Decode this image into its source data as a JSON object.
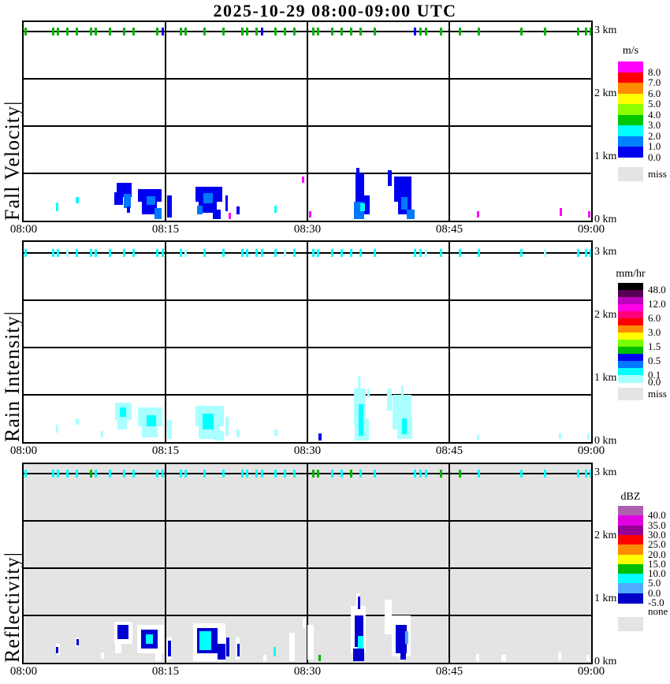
{
  "title": "2025-10-29  08:00-09:00 UTC",
  "time_axis": {
    "tick_labels": [
      "08:00",
      "08:15",
      "08:30",
      "08:45",
      "09:00"
    ],
    "tick_minutes": [
      0,
      15,
      30,
      45,
      60
    ]
  },
  "height_axis": {
    "tick_labels": [
      "3 km",
      "2 km",
      "1 km",
      "0 km"
    ],
    "tick_km": [
      3,
      2,
      1,
      0
    ]
  },
  "palette": {
    "b": "#0000F0",
    "d": "#0078FF",
    "c": "#00FFFF",
    "p": "#AAFFFF",
    "m": "#FF00FF",
    "w": "#FFFFFF",
    "n": "#0000D2",
    "g": "#00B400",
    "lb": "#50AAFF",
    "miss": "#E4E4E4",
    "grid": "#000000"
  },
  "top_tick_minutes": [
    0.2,
    3.1,
    3.6,
    4.6,
    5.6,
    7.1,
    7.6,
    9.1,
    10.6,
    11.6,
    14.1,
    14.7,
    16.6,
    17.1,
    19.1,
    21.1,
    23.1,
    23.6,
    24.6,
    25.2,
    26.6,
    27.6,
    28.6,
    30.6,
    31.1,
    32.6,
    33.6,
    34.6,
    35.6,
    37.1,
    41.3,
    41.9,
    42.5,
    44.1,
    46.1,
    48.1,
    52.6,
    55.1,
    58.6,
    59.4,
    59.9
  ],
  "panels": [
    {
      "id": "fall-velocity",
      "ylabel": "Fall Velocity|",
      "background": "#FFFFFF",
      "tick_default": "g",
      "tick_overrides": {
        "11": "b",
        "19": "b",
        "30": "b"
      },
      "colorbar": {
        "title": "m/s",
        "colors": [
          "#FF00FF",
          "#FF0000",
          "#FF8C00",
          "#FFFF00",
          "#8CFF00",
          "#00C800",
          "#00FFFF",
          "#0082FF",
          "#0000F0"
        ],
        "labels": [
          "8.0",
          "7.0",
          "6.0",
          "5.0",
          "4.0",
          "3.0",
          "2.0",
          "1.0",
          "0.0"
        ],
        "label_boundary_index": [
          1,
          2,
          3,
          4,
          5,
          6,
          7,
          8,
          9
        ],
        "missing_label": "miss",
        "missing_color": "#E4E4E4"
      },
      "cells": [
        [
          3.4,
          0.15,
          0.3,
          0.14,
          "c"
        ],
        [
          5.5,
          0.27,
          0.3,
          0.11,
          "c"
        ],
        [
          9.8,
          0.38,
          1.6,
          0.22,
          "b"
        ],
        [
          9.6,
          0.25,
          0.9,
          0.2,
          "b"
        ],
        [
          10.6,
          0.2,
          0.7,
          0.22,
          "d"
        ],
        [
          10.9,
          0.13,
          0.35,
          0.1,
          "b"
        ],
        [
          12.1,
          0.3,
          2.5,
          0.2,
          "b"
        ],
        [
          12.5,
          0.1,
          1.6,
          0.28,
          "b"
        ],
        [
          13.0,
          0.25,
          0.9,
          0.14,
          "d"
        ],
        [
          13.8,
          0.02,
          0.8,
          0.18,
          "d"
        ],
        [
          15.2,
          0.05,
          0.5,
          0.35,
          "b"
        ],
        [
          18.2,
          0.3,
          2.8,
          0.24,
          "b"
        ],
        [
          18.5,
          0.12,
          1.9,
          0.26,
          "b"
        ],
        [
          19.0,
          0.28,
          1.0,
          0.16,
          "d"
        ],
        [
          18.3,
          0.1,
          0.6,
          0.14,
          "d"
        ],
        [
          20.0,
          0.02,
          0.8,
          0.16,
          "b"
        ],
        [
          21.3,
          0.15,
          0.3,
          0.25,
          "b"
        ],
        [
          21.7,
          0.02,
          0.25,
          0.1,
          "m"
        ],
        [
          22.5,
          0.1,
          0.3,
          0.12,
          "b"
        ],
        [
          26.5,
          0.12,
          0.25,
          0.12,
          "c"
        ],
        [
          29.4,
          0.6,
          0.25,
          0.1,
          "m"
        ],
        [
          30.2,
          0.05,
          0.25,
          0.1,
          "m"
        ],
        [
          35.1,
          0.3,
          0.9,
          0.45,
          "b"
        ],
        [
          35.3,
          0.1,
          1.3,
          0.3,
          "b"
        ],
        [
          34.9,
          0.02,
          1.1,
          0.28,
          "d"
        ],
        [
          35.6,
          0.15,
          0.5,
          0.12,
          "c"
        ],
        [
          35.2,
          0.72,
          0.3,
          0.12,
          "b"
        ],
        [
          38.5,
          0.55,
          0.4,
          0.25,
          "b"
        ],
        [
          39.2,
          0.3,
          1.8,
          0.4,
          "b"
        ],
        [
          39.6,
          0.1,
          1.4,
          0.3,
          "b"
        ],
        [
          39.9,
          0.18,
          0.7,
          0.2,
          "d"
        ],
        [
          40.5,
          0.02,
          0.8,
          0.15,
          "d"
        ],
        [
          47.9,
          0.05,
          0.2,
          0.1,
          "m"
        ],
        [
          56.7,
          0.08,
          0.2,
          0.12,
          "m"
        ],
        [
          59.7,
          0.05,
          0.2,
          0.1,
          "m"
        ]
      ]
    },
    {
      "id": "rain-intensity",
      "ylabel": "Rain Intensity|",
      "background": "#FFFFFF",
      "tick_default": "c",
      "tick_overrides": {
        "3": "p",
        "13": "p",
        "21": "p",
        "32": "p",
        "37": "p"
      },
      "colorbar": {
        "title": "mm/hr",
        "colors": [
          "#000000",
          "#550055",
          "#BE00BE",
          "#FF00E6",
          "#FF0078",
          "#FF0000",
          "#FF8C00",
          "#FFFF00",
          "#78FF00",
          "#00BE00",
          "#0000F0",
          "#0078FF",
          "#00FFFF",
          "#AAFFFF"
        ],
        "labels": [
          "48.0",
          "12.0",
          "6.0",
          "3.0",
          "1.5",
          "0.5",
          "0.1",
          "0.0"
        ],
        "label_boundary_index": [
          1,
          3,
          5,
          7,
          9,
          11,
          13,
          14
        ],
        "missing_label": "miss",
        "missing_color": "#E4E4E4"
      },
      "cells": [
        [
          3.4,
          0.15,
          0.3,
          0.12,
          "p"
        ],
        [
          5.5,
          0.27,
          0.3,
          0.1,
          "p"
        ],
        [
          8.2,
          0.08,
          0.25,
          0.1,
          "p"
        ],
        [
          9.7,
          0.35,
          1.7,
          0.28,
          "p"
        ],
        [
          9.9,
          0.2,
          1.0,
          0.2,
          "p"
        ],
        [
          10.2,
          0.4,
          0.6,
          0.15,
          "c"
        ],
        [
          12.1,
          0.25,
          2.6,
          0.3,
          "p"
        ],
        [
          12.5,
          0.08,
          1.7,
          0.25,
          "p"
        ],
        [
          13.0,
          0.25,
          1.0,
          0.18,
          "c"
        ],
        [
          15.2,
          0.05,
          0.5,
          0.3,
          "p"
        ],
        [
          18.2,
          0.25,
          3.0,
          0.33,
          "p"
        ],
        [
          18.5,
          0.05,
          2.2,
          0.3,
          "p"
        ],
        [
          18.9,
          0.2,
          1.2,
          0.25,
          "c"
        ],
        [
          20.2,
          0.02,
          1.0,
          0.15,
          "p"
        ],
        [
          21.3,
          0.1,
          0.4,
          0.3,
          "p"
        ],
        [
          22.5,
          0.08,
          0.3,
          0.12,
          "p"
        ],
        [
          26.5,
          0.1,
          0.3,
          0.1,
          "p"
        ],
        [
          31.2,
          0.02,
          0.3,
          0.12,
          "b"
        ],
        [
          34.9,
          0.25,
          1.3,
          0.6,
          "p"
        ],
        [
          35.0,
          0.02,
          1.5,
          0.35,
          "p"
        ],
        [
          35.4,
          0.1,
          0.5,
          0.5,
          "c"
        ],
        [
          35.3,
          0.85,
          0.3,
          0.2,
          "p"
        ],
        [
          36.3,
          0.7,
          0.25,
          0.15,
          "p"
        ],
        [
          38.4,
          0.5,
          0.5,
          0.35,
          "p"
        ],
        [
          39.0,
          0.2,
          2.0,
          0.55,
          "p"
        ],
        [
          39.5,
          0.05,
          1.6,
          0.3,
          "p"
        ],
        [
          40.0,
          0.12,
          0.5,
          0.25,
          "c"
        ],
        [
          39.9,
          0.6,
          0.3,
          0.3,
          "p"
        ],
        [
          47.9,
          0.03,
          0.25,
          0.08,
          "p"
        ],
        [
          56.6,
          0.05,
          0.25,
          0.1,
          "p"
        ],
        [
          59.6,
          0.04,
          0.2,
          0.1,
          "p"
        ]
      ]
    },
    {
      "id": "reflectivity",
      "ylabel": "Reflectivity|",
      "background": "#E4E4E4",
      "tick_default": "c",
      "tick_overrides": {
        "5": "g",
        "23": "g",
        "24": "g",
        "27": "g",
        "33": "g",
        "34": "g"
      },
      "colorbar": {
        "title": "dBZ",
        "colors": [
          "#AF5FAF",
          "#E100E1",
          "#960096",
          "#FF0000",
          "#FF8C00",
          "#FFFF00",
          "#00BE00",
          "#00FFFF",
          "#50AAFF",
          "#0000C8"
        ],
        "labels": [
          "40.0",
          "35.0",
          "30.0",
          "25.0",
          "20.0",
          "15.0",
          "10.0",
          "5.0",
          "0.0",
          "-5.0"
        ],
        "label_boundary_index": [
          1,
          2,
          3,
          4,
          5,
          6,
          7,
          8,
          9,
          10
        ],
        "missing_label": "none",
        "missing_color": "#E4E4E4"
      },
      "cells": [
        [
          3.4,
          0.12,
          0.4,
          0.18,
          "w"
        ],
        [
          3.45,
          0.15,
          0.25,
          0.1,
          "n"
        ],
        [
          5.5,
          0.25,
          0.35,
          0.15,
          "w"
        ],
        [
          5.55,
          0.27,
          0.2,
          0.1,
          "n"
        ],
        [
          8.2,
          0.06,
          0.3,
          0.1,
          "w"
        ],
        [
          9.6,
          0.3,
          1.9,
          0.35,
          "w"
        ],
        [
          9.9,
          0.38,
          1.2,
          0.22,
          "n"
        ],
        [
          9.7,
          0.15,
          0.6,
          0.2,
          "w"
        ],
        [
          12.0,
          0.15,
          2.8,
          0.45,
          "w"
        ],
        [
          12.4,
          0.22,
          1.8,
          0.3,
          "n"
        ],
        [
          12.9,
          0.3,
          0.8,
          0.15,
          "c"
        ],
        [
          13.9,
          0.02,
          0.7,
          0.2,
          "w"
        ],
        [
          15.1,
          0.05,
          0.6,
          0.35,
          "w"
        ],
        [
          15.25,
          0.1,
          0.3,
          0.25,
          "n"
        ],
        [
          17.9,
          0.02,
          3.4,
          0.6,
          "w"
        ],
        [
          18.3,
          0.15,
          2.2,
          0.4,
          "n"
        ],
        [
          18.6,
          0.2,
          1.2,
          0.3,
          "c"
        ],
        [
          20.5,
          0.05,
          0.8,
          0.25,
          "n"
        ],
        [
          21.4,
          0.1,
          0.35,
          0.3,
          "n"
        ],
        [
          22.4,
          0.05,
          0.4,
          0.35,
          "w"
        ],
        [
          22.55,
          0.1,
          0.2,
          0.2,
          "n"
        ],
        [
          25.3,
          0.02,
          0.4,
          0.1,
          "w"
        ],
        [
          26.4,
          0.1,
          0.3,
          0.15,
          "c"
        ],
        [
          28.1,
          0.02,
          0.6,
          0.45,
          "w"
        ],
        [
          30.0,
          0.05,
          0.7,
          0.55,
          "w"
        ],
        [
          31.15,
          0.02,
          0.25,
          0.1,
          "g"
        ],
        [
          29.5,
          0.55,
          0.3,
          0.15,
          "w"
        ],
        [
          34.6,
          0.15,
          1.6,
          0.75,
          "w"
        ],
        [
          35.0,
          0.25,
          0.9,
          0.5,
          "n"
        ],
        [
          35.3,
          0.12,
          0.6,
          0.3,
          "c"
        ],
        [
          35.2,
          0.8,
          0.4,
          0.3,
          "w"
        ],
        [
          35.3,
          0.85,
          0.2,
          0.2,
          "n"
        ],
        [
          34.8,
          0.02,
          1.2,
          0.2,
          "n"
        ],
        [
          38.2,
          0.45,
          0.7,
          0.55,
          "w"
        ],
        [
          38.9,
          0.1,
          2.0,
          0.65,
          "w"
        ],
        [
          39.3,
          0.15,
          1.2,
          0.45,
          "n"
        ],
        [
          39.8,
          0.05,
          0.6,
          0.3,
          "n"
        ],
        [
          40.3,
          0.3,
          0.4,
          0.2,
          "lb"
        ],
        [
          47.8,
          0.02,
          0.4,
          0.12,
          "w"
        ],
        [
          50.5,
          0.03,
          0.5,
          0.1,
          "w"
        ],
        [
          56.5,
          0.04,
          0.3,
          0.12,
          "w"
        ],
        [
          59.5,
          0.03,
          0.3,
          0.1,
          "w"
        ]
      ]
    }
  ],
  "chart_data": [
    {
      "type": "heatmap",
      "title": "Fall Velocity",
      "colorbar_units": "m/s",
      "x_ticks": [
        "08:00",
        "08:15",
        "08:30",
        "08:45",
        "09:00"
      ],
      "y_ticks": [
        "0 km",
        "1 km",
        "2 km",
        "3 km"
      ],
      "scale_boundaries": [
        8.0,
        7.0,
        6.0,
        5.0,
        4.0,
        3.0,
        2.0,
        1.0,
        0.0
      ],
      "missing_value_label": "miss",
      "cells_format": "[start_minute_after_0800, base_height_km, duration_min, depth_km, color_key]",
      "events": [
        {
          "time": "08:09-08:16",
          "height_km": "0-0.6",
          "value": "0-2 m/s"
        },
        {
          "time": "08:18-08:22",
          "height_km": "0-0.55",
          "value": "0-2 m/s"
        },
        {
          "time": "08:33-08:42",
          "height_km": "0-0.85",
          "value": "0-2 m/s"
        },
        {
          "time": "whole hour",
          "height_km": "3.0 (top boundary)",
          "value": "scattered 3-4 m/s detections"
        }
      ]
    },
    {
      "type": "heatmap",
      "title": "Rain Intensity",
      "colorbar_units": "mm/hr",
      "x_ticks": [
        "08:00",
        "08:15",
        "08:30",
        "08:45",
        "09:00"
      ],
      "y_ticks": [
        "0 km",
        "1 km",
        "2 km",
        "3 km"
      ],
      "scale_boundaries": [
        48.0,
        12.0,
        6.0,
        3.0,
        1.5,
        0.5,
        0.1,
        0.0
      ],
      "missing_value_label": "miss",
      "cells_format": "[start_minute_after_0800, base_height_km, duration_min, depth_km, color_key]",
      "events": [
        {
          "time": "08:09-08:22",
          "height_km": "0-0.65",
          "value": "0.0-0.5 mm/hr"
        },
        {
          "time": "08:33-08:42",
          "height_km": "0-1.05",
          "value": "0.0-0.5 mm/hr"
        },
        {
          "time": "whole hour",
          "height_km": "3.0 (top boundary)",
          "value": "scattered 0.0-0.1 mm/hr detections"
        }
      ]
    },
    {
      "type": "heatmap",
      "title": "Reflectivity",
      "colorbar_units": "dBZ",
      "x_ticks": [
        "08:00",
        "08:15",
        "08:30",
        "08:45",
        "09:00"
      ],
      "y_ticks": [
        "0 km",
        "1 km",
        "2 km",
        "3 km"
      ],
      "scale_boundaries": [
        40.0,
        35.0,
        30.0,
        25.0,
        20.0,
        15.0,
        10.0,
        5.0,
        0.0,
        -5.0
      ],
      "missing_value_label": "none",
      "cells_format": "[start_minute_after_0800, base_height_km, duration_min, depth_km, color_key]",
      "events": [
        {
          "time": "08:09-08:22",
          "height_km": "0-0.65",
          "value": "-5 to 10 dBZ"
        },
        {
          "time": "08:33-08:42",
          "height_km": "0-1.1",
          "value": "-5 to 10 dBZ"
        },
        {
          "time": "whole hour",
          "height_km": "3.0 (top boundary)",
          "value": "scattered 5-15 dBZ detections"
        }
      ]
    }
  ]
}
